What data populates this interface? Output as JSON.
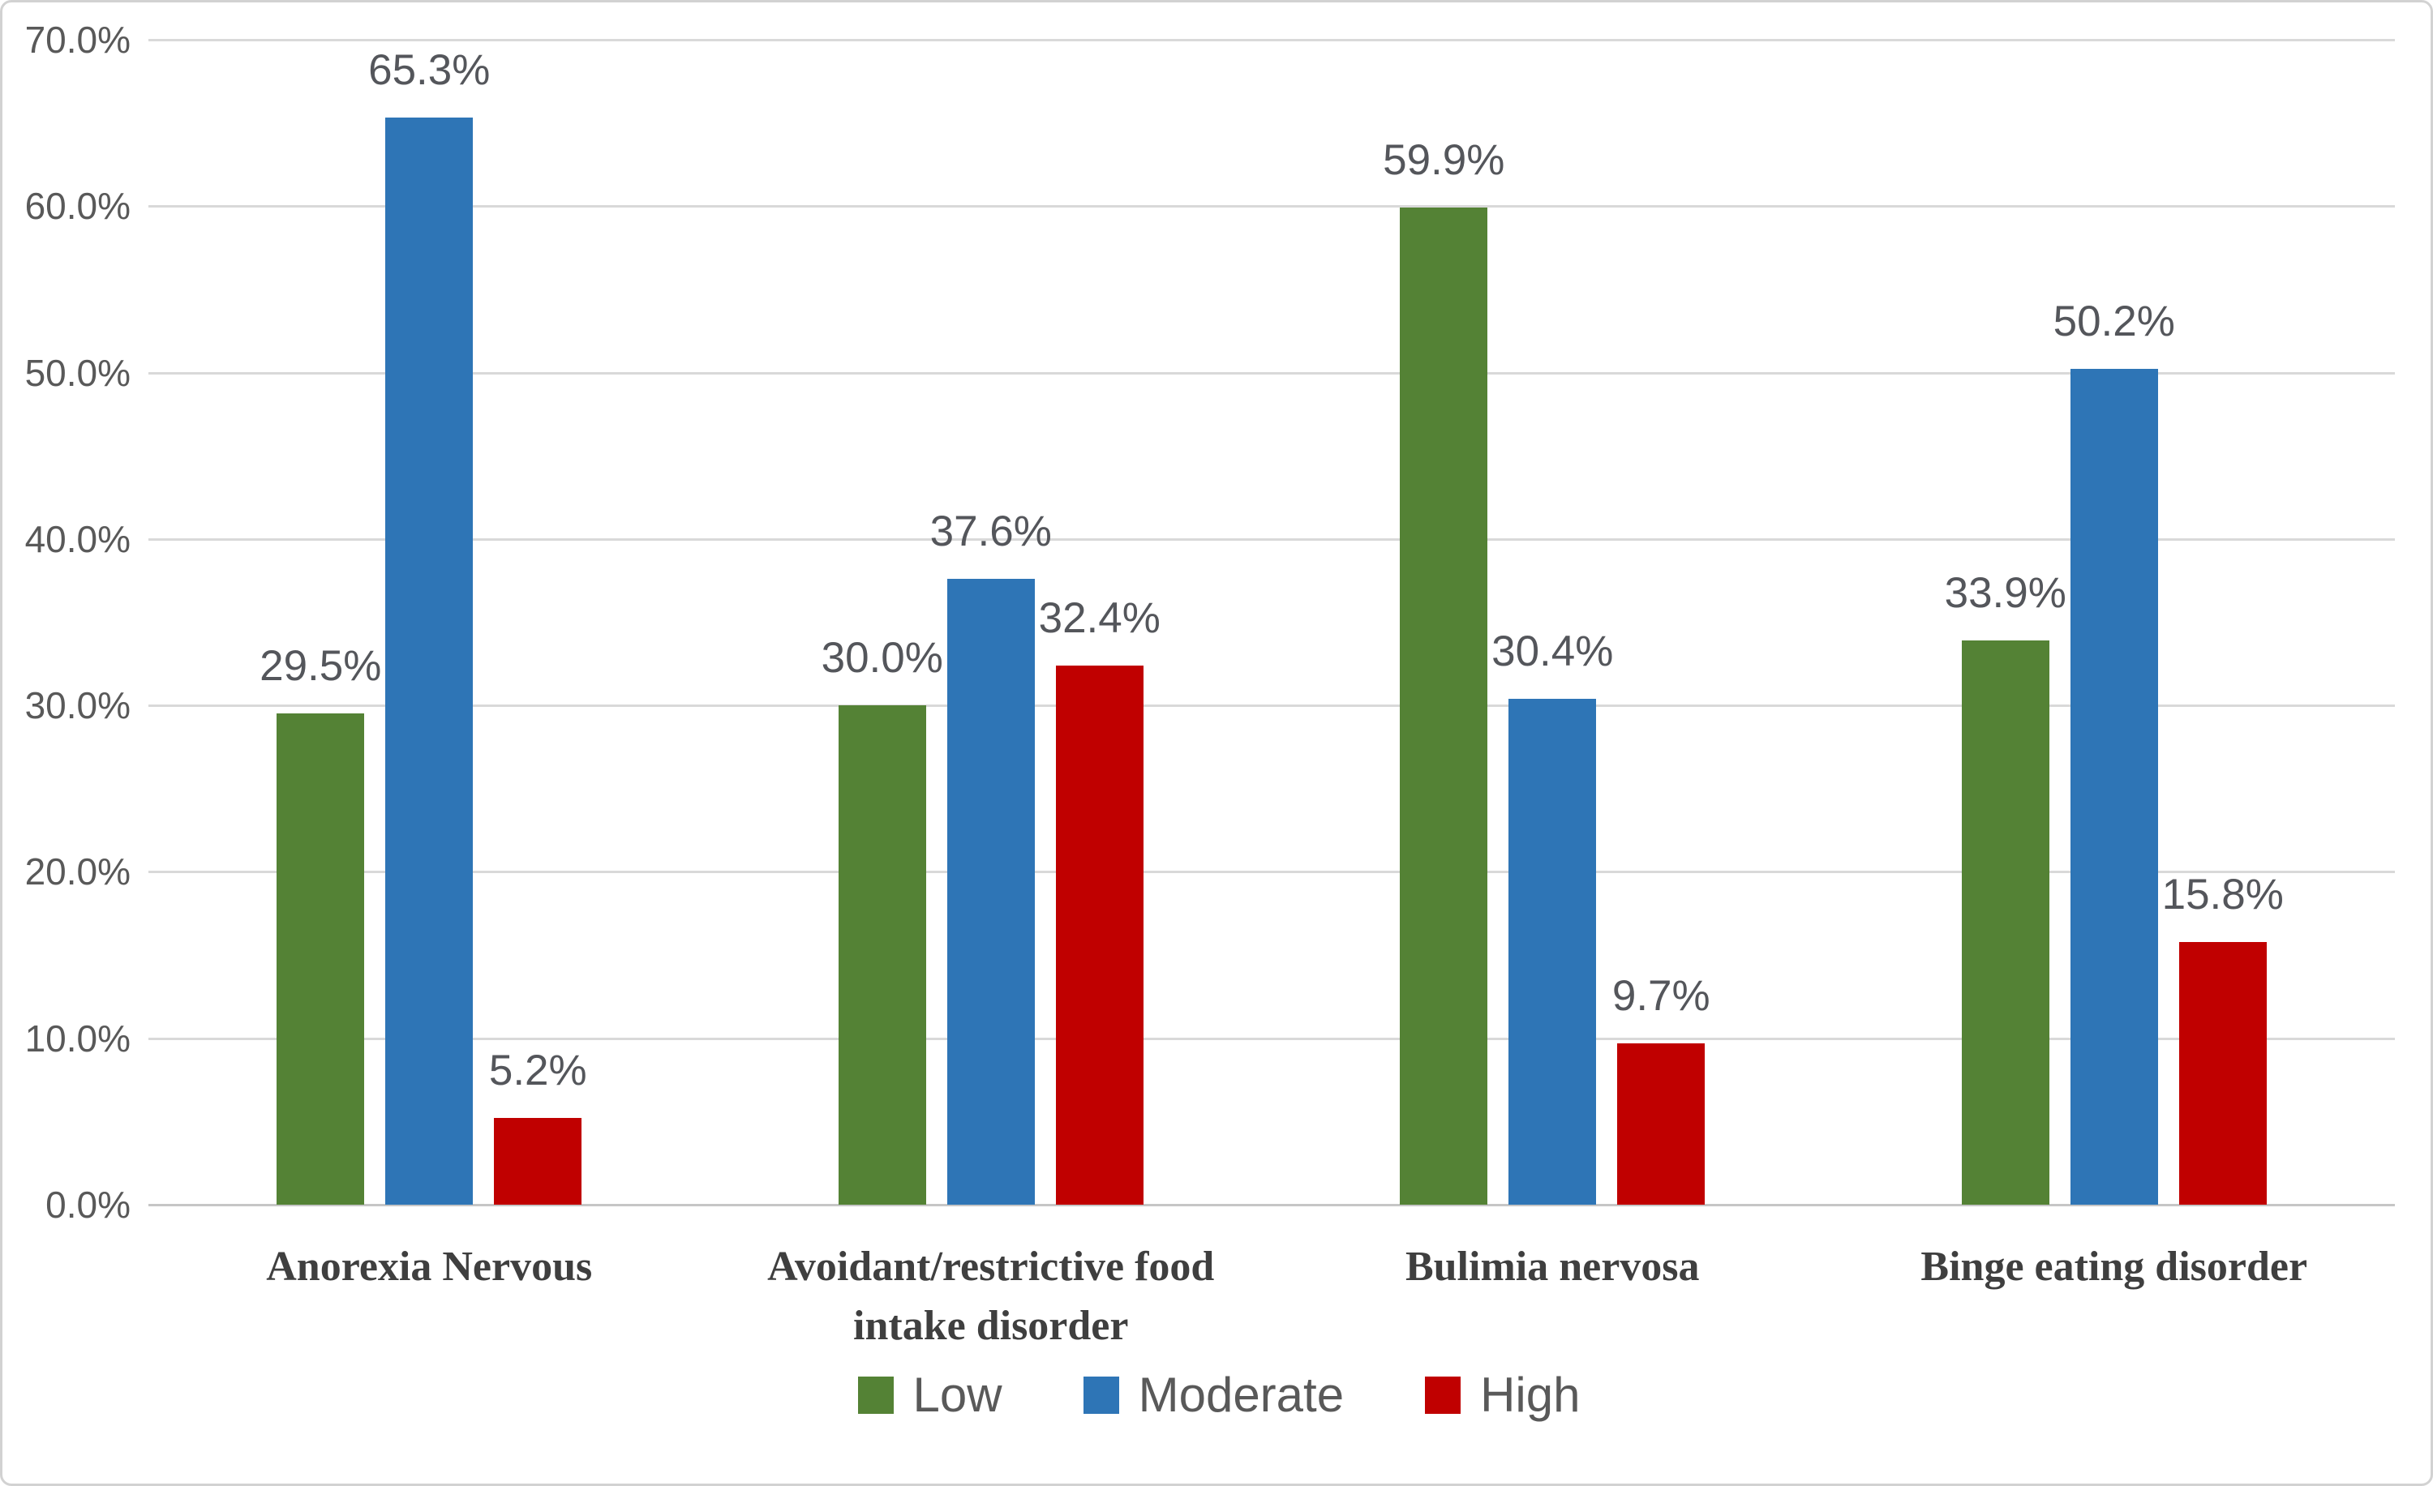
{
  "chart_data": {
    "type": "bar",
    "title": "",
    "xlabel": "",
    "ylabel": "",
    "categories": [
      "Anorexia Nervous",
      "Avoidant/restrictive food intake disorder",
      "Bulimia nervosa",
      "Binge eating disorder"
    ],
    "series": [
      {
        "name": "Low",
        "color": "#548235",
        "values": [
          29.5,
          30.0,
          59.9,
          33.9
        ],
        "labels": [
          "29.5%",
          "30.0%",
          "59.9%",
          "33.9%"
        ]
      },
      {
        "name": "Moderate",
        "color": "#2E75B6",
        "values": [
          65.3,
          37.6,
          30.4,
          50.2
        ],
        "labels": [
          "65.3%",
          "37.6%",
          "30.4%",
          "50.2%"
        ]
      },
      {
        "name": "High",
        "color": "#C00000",
        "values": [
          5.2,
          32.4,
          9.7,
          15.8
        ],
        "labels": [
          "5.2%",
          "32.4%",
          "9.7%",
          "15.8%"
        ]
      }
    ],
    "y_axis": {
      "min": 0,
      "max": 70,
      "step": 10,
      "ticks": [
        "0.0%",
        "10.0%",
        "20.0%",
        "30.0%",
        "40.0%",
        "50.0%",
        "60.0%",
        "70.0%"
      ]
    },
    "legend": {
      "position": "bottom",
      "entries": [
        "Low",
        "Moderate",
        "High"
      ]
    },
    "grid": true,
    "value_format": "percent_1dp"
  }
}
